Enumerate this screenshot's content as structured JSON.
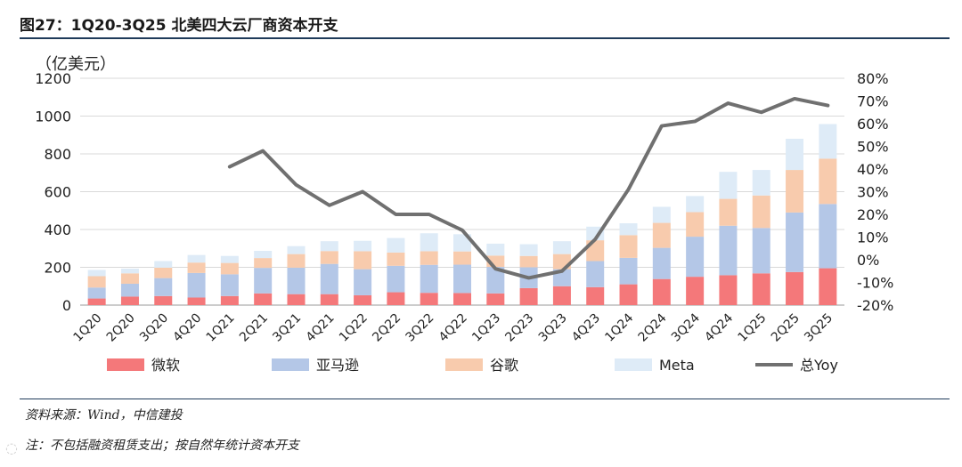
{
  "title": "图27：1Q20-3Q25 北美四大云厂商资本开支",
  "source": "资料来源：Wind，中信建投",
  "note": "注：不包括融资租赁支出；按自然年统计资本开支",
  "colors": {
    "微软": "#f4787a",
    "亚马逊": "#b4c7e7",
    "谷歌": "#f8cbad",
    "Meta": "#deebf7",
    "总Yoy": "#707070"
  },
  "chart_data": {
    "type": "bar",
    "stacked": true,
    "title": "",
    "ylabel": "（亿美元）",
    "ylim": [
      0,
      1200
    ],
    "yticks": [
      0,
      200,
      400,
      600,
      800,
      1000,
      1200
    ],
    "y2lim": [
      -20,
      80
    ],
    "y2ticks": [
      "-20%",
      "-10%",
      "0%",
      "10%",
      "20%",
      "30%",
      "40%",
      "50%",
      "60%",
      "70%",
      "80%"
    ],
    "categories": [
      "1Q20",
      "2Q20",
      "3Q20",
      "4Q20",
      "1Q21",
      "2Q21",
      "3Q21",
      "4Q21",
      "1Q22",
      "2Q22",
      "3Q22",
      "4Q22",
      "1Q23",
      "2Q23",
      "3Q23",
      "4Q23",
      "1Q24",
      "2Q24",
      "3Q24",
      "4Q24",
      "1Q25",
      "2Q25",
      "3Q25"
    ],
    "series": [
      {
        "name": "微软",
        "values": [
          35,
          45,
          48,
          40,
          48,
          62,
          58,
          58,
          52,
          68,
          65,
          64,
          62,
          90,
          100,
          95,
          110,
          138,
          150,
          158,
          168,
          175,
          195
        ]
      },
      {
        "name": "亚马逊",
        "values": [
          58,
          68,
          95,
          130,
          115,
          135,
          140,
          160,
          138,
          140,
          148,
          150,
          140,
          110,
          90,
          138,
          140,
          165,
          212,
          262,
          240,
          315,
          340
        ]
      },
      {
        "name": "谷歌",
        "values": [
          60,
          55,
          55,
          55,
          60,
          52,
          72,
          68,
          95,
          70,
          72,
          70,
          60,
          60,
          80,
          110,
          120,
          132,
          130,
          142,
          172,
          225,
          240
        ]
      },
      {
        "name": "Meta",
        "values": [
          33,
          25,
          35,
          40,
          37,
          38,
          42,
          52,
          55,
          77,
          95,
          91,
          63,
          62,
          68,
          72,
          63,
          85,
          85,
          143,
          135,
          165,
          183
        ]
      },
      {
        "name": "总Yoy",
        "axis": "right",
        "type": "line",
        "values": [
          null,
          null,
          null,
          null,
          41,
          48,
          33,
          24,
          30,
          20,
          20,
          13,
          -4,
          -8,
          -5,
          9,
          31,
          59,
          61,
          69,
          65,
          71,
          68
        ]
      }
    ],
    "legend": [
      "微软",
      "亚马逊",
      "谷歌",
      "Meta",
      "总Yoy"
    ]
  }
}
